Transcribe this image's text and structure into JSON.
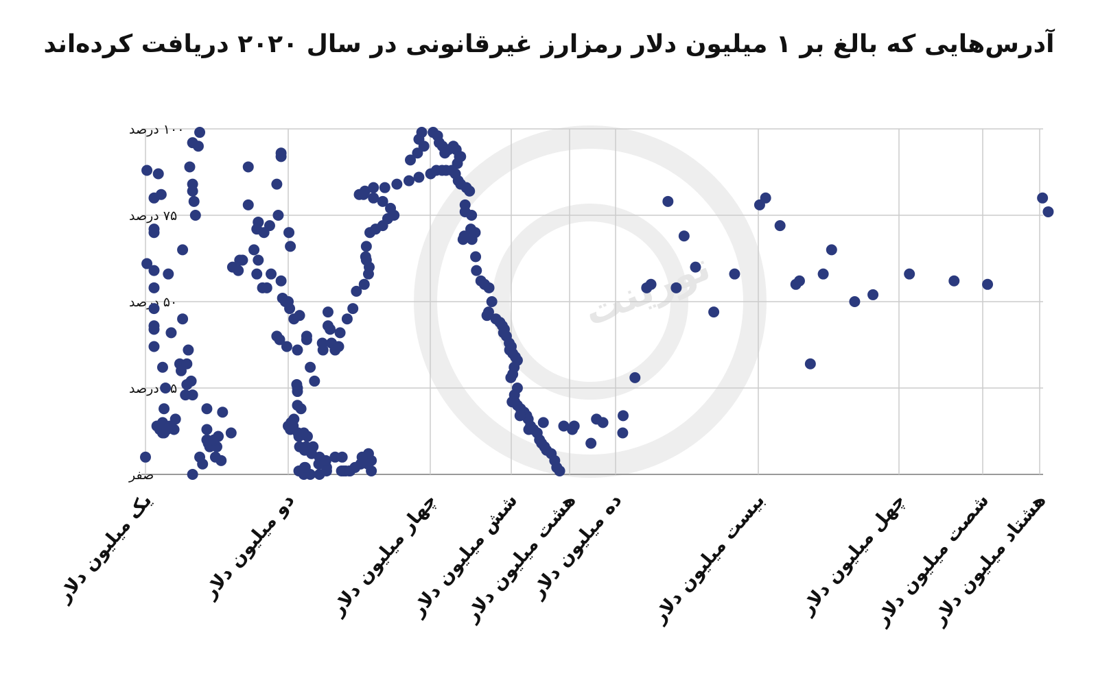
{
  "title": "آدرس‌هایی که بالغ بر ۱ میلیون دلار رمزارز غیرقانونی در سال ۲۰۲۰ دریافت کرده‌اند",
  "watermark": {
    "brand_text": "تورینت"
  },
  "colors": {
    "point": "#2b3a7e",
    "grid": "#cccccc",
    "watermark": "#eeeeee"
  },
  "chart_data": {
    "type": "scatter",
    "x_scale": "categorical-log",
    "x_tick_labels": [
      "یک میلیون دلار",
      "دو میلیون دلار",
      "چهار میلیون دلار",
      "شش میلیون دلار",
      "هشت میلیون دلار",
      "ده میلیون دلار",
      "بیست میلیون دلار",
      "چهل میلیون دلار",
      "شصت میلیون دلار",
      "هشتاد میلیون دلار"
    ],
    "x_tick_values": [
      1,
      2,
      4,
      6,
      8,
      10,
      20,
      40,
      60,
      80
    ],
    "y_tick_labels": [
      "صفر",
      "۲۵ درصد",
      "۵۰ درصد",
      "۷۵ درصد",
      "۱۰۰ درصد"
    ],
    "y_tick_values": [
      0,
      25,
      50,
      75,
      100
    ],
    "xlim": [
      1,
      85
    ],
    "ylim": [
      0,
      100
    ],
    "grid": true,
    "points": [
      [
        1.0,
        5.0
      ],
      [
        1.01,
        88
      ],
      [
        1.06,
        80
      ],
      [
        1.06,
        71
      ],
      [
        1.06,
        70
      ],
      [
        1.06,
        59
      ],
      [
        1.06,
        54
      ],
      [
        1.06,
        48
      ],
      [
        1.06,
        42
      ],
      [
        1.06,
        37
      ],
      [
        1.06,
        43
      ],
      [
        1.01,
        61
      ],
      [
        1.09,
        87
      ],
      [
        1.11,
        81
      ],
      [
        1.12,
        31
      ],
      [
        1.14,
        25
      ],
      [
        1.13,
        19
      ],
      [
        1.13,
        12
      ],
      [
        1.12,
        12
      ],
      [
        1.12,
        13
      ],
      [
        1.1,
        13
      ],
      [
        1.08,
        14
      ],
      [
        1.12,
        15
      ],
      [
        1.21,
        16
      ],
      [
        1.2,
        13
      ],
      [
        1.17,
        14
      ],
      [
        1.15,
        13
      ],
      [
        1.16,
        58
      ],
      [
        1.18,
        41
      ],
      [
        1.26,
        65
      ],
      [
        1.26,
        45
      ],
      [
        1.24,
        32
      ],
      [
        1.25,
        30
      ],
      [
        1.29,
        32
      ],
      [
        1.3,
        36
      ],
      [
        1.32,
        27
      ],
      [
        1.29,
        26
      ],
      [
        1.28,
        23
      ],
      [
        1.31,
        89
      ],
      [
        1.33,
        84
      ],
      [
        1.33,
        82
      ],
      [
        1.34,
        79
      ],
      [
        1.35,
        75
      ],
      [
        1.38,
        99
      ],
      [
        1.37,
        95
      ],
      [
        1.33,
        96
      ],
      [
        1.33,
        23
      ],
      [
        1.43,
        19
      ],
      [
        1.43,
        13
      ],
      [
        1.43,
        10
      ],
      [
        1.44,
        9
      ],
      [
        1.45,
        8
      ],
      [
        1.4,
        3
      ],
      [
        1.33,
        0
      ],
      [
        1.38,
        5
      ],
      [
        1.53,
        4
      ],
      [
        1.5,
        8
      ],
      [
        1.49,
        5
      ],
      [
        1.48,
        10
      ],
      [
        1.51,
        11
      ],
      [
        1.54,
        18
      ],
      [
        1.6,
        12
      ],
      [
        1.61,
        60
      ],
      [
        1.65,
        59
      ],
      [
        1.68,
        62
      ],
      [
        1.66,
        62
      ],
      [
        1.72,
        89
      ],
      [
        1.76,
        65
      ],
      [
        1.72,
        78
      ],
      [
        1.79,
        73
      ],
      [
        1.79,
        73
      ],
      [
        1.78,
        71
      ],
      [
        1.79,
        62
      ],
      [
        1.78,
        58
      ],
      [
        1.82,
        54
      ],
      [
        1.85,
        54
      ],
      [
        1.88,
        58
      ],
      [
        1.83,
        70
      ],
      [
        1.87,
        72
      ],
      [
        1.95,
        93
      ],
      [
        1.95,
        92
      ],
      [
        1.92,
        84
      ],
      [
        1.93,
        75
      ],
      [
        2.01,
        70
      ],
      [
        2.03,
        66
      ],
      [
        1.95,
        56
      ],
      [
        1.96,
        51
      ],
      [
        1.98,
        50
      ],
      [
        1.92,
        40
      ],
      [
        1.94,
        39
      ],
      [
        1.99,
        37
      ],
      [
        2.08,
        45
      ],
      [
        2.02,
        48
      ],
      [
        2.0,
        50
      ],
      [
        2.16,
        46
      ],
      [
        2.26,
        40
      ],
      [
        2.26,
        39
      ],
      [
        2.13,
        36
      ],
      [
        2.12,
        26
      ],
      [
        2.13,
        25
      ],
      [
        2.13,
        24
      ],
      [
        2.13,
        20
      ],
      [
        2.18,
        19
      ],
      [
        2.08,
        16
      ],
      [
        2.04,
        15
      ],
      [
        2.0,
        14
      ],
      [
        2.03,
        13
      ],
      [
        2.07,
        14
      ],
      [
        2.14,
        12
      ],
      [
        2.16,
        8
      ],
      [
        2.23,
        7
      ],
      [
        2.25,
        8
      ],
      [
        2.15,
        11
      ],
      [
        2.22,
        12
      ],
      [
        2.27,
        11
      ],
      [
        2.35,
        8
      ],
      [
        2.33,
        6
      ],
      [
        2.44,
        5
      ],
      [
        2.43,
        3
      ],
      [
        2.54,
        2
      ],
      [
        2.54,
        1
      ],
      [
        2.44,
        0
      ],
      [
        2.31,
        0
      ],
      [
        2.23,
        2
      ],
      [
        2.22,
        0
      ],
      [
        2.15,
        1
      ],
      [
        2.24,
        2
      ],
      [
        2.53,
        4
      ],
      [
        2.66,
        5
      ],
      [
        2.76,
        5
      ],
      [
        2.75,
        1
      ],
      [
        2.78,
        1
      ],
      [
        2.81,
        1
      ],
      [
        2.86,
        1
      ],
      [
        3.02,
        3
      ],
      [
        3.17,
        1
      ],
      [
        3.17,
        4
      ],
      [
        3.13,
        6
      ],
      [
        3.04,
        5
      ],
      [
        3.12,
        3
      ],
      [
        2.94,
        2
      ],
      [
        2.87,
        1
      ],
      [
        2.37,
        27
      ],
      [
        2.31,
        31
      ],
      [
        2.49,
        36
      ],
      [
        2.48,
        38
      ],
      [
        2.61,
        38
      ],
      [
        2.66,
        36
      ],
      [
        2.71,
        37
      ],
      [
        2.59,
        42
      ],
      [
        2.56,
        43
      ],
      [
        2.56,
        47
      ],
      [
        2.73,
        41
      ],
      [
        2.83,
        45
      ],
      [
        2.91,
        48
      ],
      [
        2.96,
        53
      ],
      [
        3.07,
        55
      ],
      [
        3.14,
        60
      ],
      [
        3.13,
        58
      ],
      [
        3.1,
        62
      ],
      [
        3.09,
        63
      ],
      [
        3.1,
        66
      ],
      [
        3.15,
        70
      ],
      [
        3.23,
        71
      ],
      [
        3.33,
        72
      ],
      [
        3.4,
        74
      ],
      [
        3.49,
        75
      ],
      [
        3.44,
        77
      ],
      [
        3.33,
        79
      ],
      [
        3.2,
        80
      ],
      [
        3.06,
        81
      ],
      [
        3.0,
        81
      ],
      [
        3.08,
        82
      ],
      [
        3.2,
        83
      ],
      [
        3.36,
        83
      ],
      [
        3.53,
        84
      ],
      [
        3.7,
        85
      ],
      [
        3.84,
        86
      ],
      [
        4.01,
        87
      ],
      [
        4.15,
        88
      ],
      [
        4.29,
        88
      ],
      [
        4.39,
        88
      ],
      [
        3.72,
        91
      ],
      [
        3.82,
        93
      ],
      [
        3.91,
        95
      ],
      [
        3.84,
        97
      ],
      [
        3.88,
        99
      ],
      [
        4.07,
        99
      ],
      [
        4.18,
        98
      ],
      [
        4.22,
        96
      ],
      [
        4.3,
        95
      ],
      [
        4.45,
        94
      ],
      [
        4.36,
        93
      ],
      [
        4.57,
        95
      ],
      [
        4.64,
        94
      ],
      [
        4.72,
        92
      ],
      [
        4.75,
        92
      ],
      [
        4.67,
        90
      ],
      [
        4.53,
        88
      ],
      [
        4.62,
        87
      ],
      [
        4.69,
        85
      ],
      [
        4.75,
        84
      ],
      [
        4.89,
        83
      ],
      [
        4.97,
        82
      ],
      [
        4.86,
        78
      ],
      [
        4.86,
        76
      ],
      [
        5.02,
        75
      ],
      [
        5.0,
        71
      ],
      [
        5.11,
        70
      ],
      [
        4.84,
        69
      ],
      [
        4.81,
        68
      ],
      [
        5.03,
        68
      ],
      [
        5.12,
        63
      ],
      [
        5.14,
        59
      ],
      [
        5.25,
        56
      ],
      [
        5.34,
        55
      ],
      [
        5.45,
        54
      ],
      [
        5.52,
        50
      ],
      [
        5.44,
        47
      ],
      [
        5.4,
        46
      ],
      [
        5.62,
        45
      ],
      [
        5.72,
        44
      ],
      [
        5.78,
        43
      ],
      [
        5.83,
        42
      ],
      [
        5.81,
        41
      ],
      [
        5.88,
        40
      ],
      [
        5.95,
        38
      ],
      [
        6.0,
        37
      ],
      [
        5.96,
        36
      ],
      [
        6.05,
        35
      ],
      [
        6.14,
        34
      ],
      [
        6.21,
        33
      ],
      [
        6.1,
        31
      ],
      [
        6.05,
        29
      ],
      [
        5.99,
        28
      ],
      [
        6.21,
        25
      ],
      [
        6.11,
        23
      ],
      [
        6.03,
        21
      ],
      [
        6.12,
        21
      ],
      [
        6.21,
        20
      ],
      [
        6.32,
        19
      ],
      [
        6.44,
        18
      ],
      [
        6.53,
        17
      ],
      [
        6.58,
        16
      ],
      [
        6.66,
        14
      ],
      [
        6.76,
        13
      ],
      [
        6.89,
        12
      ],
      [
        6.97,
        10
      ],
      [
        7.04,
        9
      ],
      [
        7.14,
        8
      ],
      [
        7.21,
        7
      ],
      [
        7.37,
        6
      ],
      [
        7.49,
        4
      ],
      [
        7.56,
        2
      ],
      [
        7.66,
        1
      ],
      [
        6.3,
        17
      ],
      [
        6.6,
        13
      ],
      [
        7.1,
        15
      ],
      [
        7.8,
        14
      ],
      [
        8.12,
        13
      ],
      [
        8.2,
        14
      ],
      [
        8.93,
        9
      ],
      [
        9.17,
        16
      ],
      [
        9.45,
        15
      ],
      [
        10.53,
        17
      ],
      [
        10.5,
        12
      ],
      [
        11.36,
        28
      ],
      [
        12.18,
        54
      ],
      [
        12.48,
        55
      ],
      [
        13.67,
        79
      ],
      [
        14.25,
        54
      ],
      [
        14.8,
        69
      ],
      [
        15.6,
        60
      ],
      [
        16.88,
        47
      ],
      [
        18.34,
        58
      ],
      [
        20.19,
        78
      ],
      [
        21.04,
        80
      ],
      [
        23.09,
        72
      ],
      [
        25.34,
        55
      ],
      [
        25.85,
        56
      ],
      [
        27.4,
        32
      ],
      [
        29.23,
        58
      ],
      [
        30.42,
        65
      ],
      [
        33.7,
        50
      ],
      [
        36.3,
        52
      ],
      [
        42.49,
        58
      ],
      [
        53.16,
        56
      ],
      [
        61.7,
        55
      ],
      [
        83.0,
        76
      ],
      [
        81.0,
        80
      ]
    ]
  }
}
